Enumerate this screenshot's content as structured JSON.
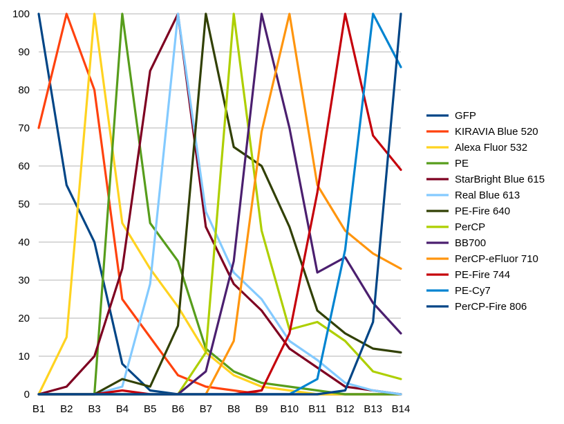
{
  "chart_data": {
    "type": "line",
    "title": "",
    "xlabel": "",
    "ylabel": "",
    "categories": [
      "B1",
      "B2",
      "B3",
      "B4",
      "B5",
      "B6",
      "B7",
      "B8",
      "B9",
      "B10",
      "B11",
      "B12",
      "B13",
      "B14"
    ],
    "ylim": [
      0,
      100
    ],
    "yticks": [
      0,
      10,
      20,
      30,
      40,
      50,
      60,
      70,
      80,
      90,
      100
    ],
    "grid": true,
    "legend_position": "right",
    "series": [
      {
        "name": "GFP",
        "color": "#004586",
        "values": [
          100,
          55,
          40,
          8,
          1,
          0,
          0,
          0,
          0,
          0,
          0,
          0,
          0,
          0
        ]
      },
      {
        "name": "KIRAVIA Blue 520",
        "color": "#ff420e",
        "values": [
          70,
          100,
          80,
          25,
          15,
          5,
          2,
          1,
          0,
          0,
          0,
          0,
          0,
          0
        ]
      },
      {
        "name": "Alexa Fluor 532",
        "color": "#ffd320",
        "values": [
          0,
          15,
          100,
          45,
          33,
          23,
          11,
          5,
          2,
          1,
          0,
          0,
          0,
          0
        ]
      },
      {
        "name": "PE",
        "color": "#579d1c",
        "values": [
          0,
          0,
          0,
          100,
          45,
          35,
          12,
          6,
          3,
          2,
          1,
          0,
          0,
          0
        ]
      },
      {
        "name": "StarBright Blue 615",
        "color": "#7e0021",
        "values": [
          0,
          2,
          10,
          33,
          85,
          100,
          44,
          29,
          22,
          12,
          7,
          2,
          1,
          0
        ]
      },
      {
        "name": "Real Blue 613",
        "color": "#83caff",
        "values": [
          0,
          0,
          0,
          2,
          29,
          100,
          48,
          32,
          25,
          14,
          9,
          3,
          1,
          0
        ]
      },
      {
        "name": "PE-Fire 640",
        "color": "#314004",
        "values": [
          0,
          0,
          0,
          4,
          2,
          18,
          100,
          65,
          60,
          44,
          22,
          16,
          12,
          11
        ]
      },
      {
        "name": "PerCP",
        "color": "#aecf00",
        "values": [
          0,
          0,
          0,
          0,
          0,
          0,
          11,
          100,
          43,
          17,
          19,
          14,
          6,
          4
        ]
      },
      {
        "name": "BB700",
        "color": "#4b1f6f",
        "values": [
          0,
          0,
          0,
          0,
          0,
          0,
          6,
          35,
          100,
          70,
          32,
          36,
          24,
          16
        ]
      },
      {
        "name": "PerCP-eFluor 710",
        "color": "#ff950e",
        "values": [
          0,
          0,
          0,
          0,
          0,
          0,
          0,
          14,
          69,
          100,
          55,
          43,
          37,
          33
        ]
      },
      {
        "name": "PE-Fire 744",
        "color": "#c5000b",
        "values": [
          0,
          0,
          0,
          1,
          0,
          0,
          0,
          0,
          1,
          16,
          53,
          100,
          68,
          59
        ]
      },
      {
        "name": "PE-Cy7",
        "color": "#0084d1",
        "values": [
          0,
          0,
          0,
          0,
          0,
          0,
          0,
          0,
          0,
          0,
          4,
          38,
          100,
          86
        ]
      },
      {
        "name": "PerCP-Fire 806",
        "color": "#004586",
        "values": [
          0,
          0,
          0,
          0,
          0,
          0,
          0,
          0,
          0,
          0,
          0,
          1,
          19,
          100
        ]
      }
    ]
  }
}
